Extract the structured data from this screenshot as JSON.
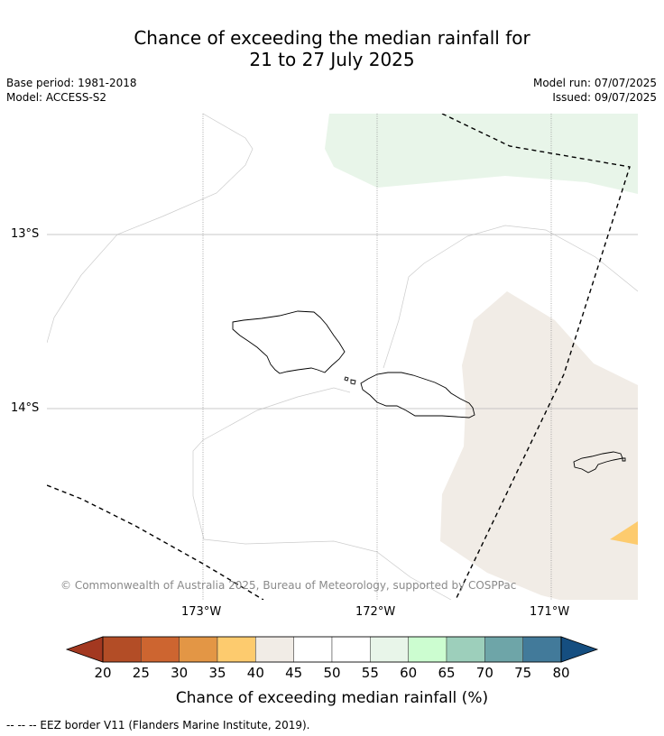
{
  "title": {
    "line1": "Chance of exceeding the median rainfall for",
    "line2": "21 to 27 July 2025"
  },
  "meta": {
    "base_period": "Base period: 1981-2018",
    "model": "Model: ACCESS-S2",
    "model_run": "Model run: 07/07/2025",
    "issued": "Issued: 09/07/2025"
  },
  "map": {
    "lat_labels": [
      "13°S",
      "14°S"
    ],
    "lon_labels": [
      "173°W",
      "172°W",
      "171°W"
    ],
    "copyright": "© Commonwealth of Australia 2025, Bureau of Meteorology, supported by COSPPac",
    "colors": {
      "land_outline": "#000000",
      "eez_border": "#000000",
      "contour": "#cccccc",
      "band_45_55": "#ffffff",
      "band_55_60": "#e8f5e9",
      "band_40_45": "#f1ece6",
      "band_35_40": "#fdcb6e"
    }
  },
  "colorbar": {
    "label": "Chance of exceeding median rainfall (%)",
    "ticks": [
      "20",
      "25",
      "30",
      "35",
      "40",
      "45",
      "50",
      "55",
      "60",
      "65",
      "70",
      "75",
      "80"
    ],
    "colors": [
      "#a33820",
      "#b34d26",
      "#cd6530",
      "#e39645",
      "#fdcb6e",
      "#f1ece6",
      "#ffffff",
      "#ffffff",
      "#e8f5e9",
      "#ccfdd0",
      "#9dcfbb",
      "#6ea5a8",
      "#427a9a",
      "#154e80"
    ]
  },
  "footnote": "--  --  -- EEZ border V11 (Flanders Marine Institute, 2019)."
}
